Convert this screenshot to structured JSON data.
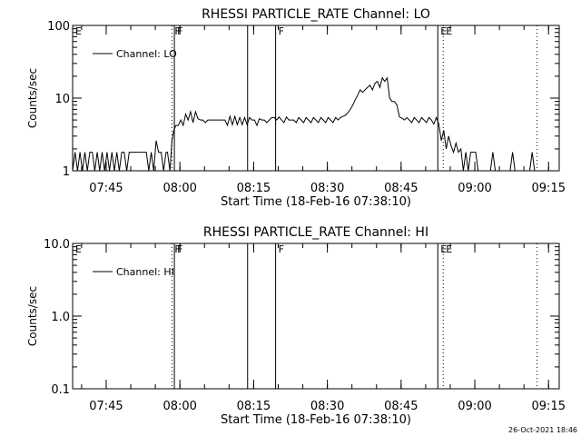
{
  "footer_stamp": "26-Oct-2021 18:46",
  "chart_data": [
    {
      "type": "line",
      "title": "RHESSI PARTICLE_RATE Channel: LO",
      "xlabel": "Start Time (18-Feb-16 07:38:10)",
      "ylabel": "Counts/sec",
      "yscale": "log",
      "ylim": [
        1,
        100
      ],
      "y_ticks": [
        {
          "label": "1",
          "value": 1
        },
        {
          "label": "10",
          "value": 10
        },
        {
          "label": "100",
          "value": 100
        }
      ],
      "x_unit": "minutes after 07:38:10",
      "xlim": [
        0,
        99
      ],
      "x_ticks": [
        {
          "label": "07:45",
          "value": 6.83
        },
        {
          "label": "08:00",
          "value": 21.83
        },
        {
          "label": "08:15",
          "value": 36.83
        },
        {
          "label": "08:30",
          "value": 51.83
        },
        {
          "label": "08:45",
          "value": 66.83
        },
        {
          "label": "09:00",
          "value": 81.83
        },
        {
          "label": "09:15",
          "value": 96.83
        }
      ],
      "markers": [
        {
          "label": "E",
          "x": 0,
          "style": "solid"
        },
        {
          "label": "F",
          "x": 20.2,
          "style": "dotted"
        },
        {
          "label": "F",
          "x": 20.7,
          "style": "solid"
        },
        {
          "label": "",
          "x": 35.6,
          "style": "solid"
        },
        {
          "label": "F",
          "x": 41.3,
          "style": "solid"
        },
        {
          "label": "E",
          "x": 74.3,
          "style": "solid"
        },
        {
          "label": "E",
          "x": 75.4,
          "style": "dotted"
        },
        {
          "label": "",
          "x": 94.5,
          "style": "dotted"
        }
      ],
      "legend": "Channel: LO",
      "series": [
        {
          "name": "Channel: LO",
          "points": [
            [
              0,
              1
            ],
            [
              0.5,
              1.8
            ],
            [
              1,
              1
            ],
            [
              1.5,
              1.8
            ],
            [
              2,
              1
            ],
            [
              2.5,
              1.8
            ],
            [
              3,
              1
            ],
            [
              3.5,
              1.8
            ],
            [
              4,
              1.8
            ],
            [
              4.5,
              1
            ],
            [
              5,
              1.8
            ],
            [
              5.5,
              1
            ],
            [
              6,
              1.8
            ],
            [
              6.5,
              1
            ],
            [
              7,
              1.8
            ],
            [
              7.5,
              1
            ],
            [
              8,
              1.8
            ],
            [
              8.5,
              1
            ],
            [
              9,
              1.8
            ],
            [
              9.5,
              1
            ],
            [
              10,
              1.8
            ],
            [
              10.5,
              1.8
            ],
            [
              11,
              1
            ],
            [
              11.5,
              1.8
            ],
            [
              12,
              1.8
            ],
            [
              13,
              1.8
            ],
            [
              14,
              1.8
            ],
            [
              15,
              1.8
            ],
            [
              15.5,
              1
            ],
            [
              16,
              1.8
            ],
            [
              16.5,
              1
            ],
            [
              17,
              2.6
            ],
            [
              17.5,
              1.8
            ],
            [
              18,
              1.8
            ],
            [
              18.5,
              1
            ],
            [
              19,
              1.8
            ],
            [
              19.3,
              1.8
            ],
            [
              19.8,
              1
            ],
            [
              20.2,
              2.6
            ],
            [
              20.6,
              3.6
            ],
            [
              21,
              4.2
            ],
            [
              21.5,
              4.2
            ],
            [
              22,
              5
            ],
            [
              22.5,
              4.2
            ],
            [
              23,
              6
            ],
            [
              23.5,
              5
            ],
            [
              24,
              6.5
            ],
            [
              24.5,
              4.6
            ],
            [
              25,
              6.5
            ],
            [
              25.5,
              5.2
            ],
            [
              26,
              5
            ],
            [
              26.5,
              5
            ],
            [
              27,
              4.6
            ],
            [
              27.5,
              5
            ],
            [
              28,
              5
            ],
            [
              29,
              5
            ],
            [
              30,
              5
            ],
            [
              31,
              5
            ],
            [
              31.5,
              4.2
            ],
            [
              32,
              5.6
            ],
            [
              32.5,
              4.3
            ],
            [
              33,
              5.6
            ],
            [
              33.5,
              4.3
            ],
            [
              34,
              5.4
            ],
            [
              34.5,
              4.3
            ],
            [
              35,
              5.4
            ],
            [
              35.5,
              4.3
            ],
            [
              36,
              5.4
            ],
            [
              36.5,
              5
            ],
            [
              37,
              5
            ],
            [
              37.5,
              4.2
            ],
            [
              38,
              5.2
            ],
            [
              38.5,
              5
            ],
            [
              39,
              5
            ],
            [
              39.5,
              4.6
            ],
            [
              40,
              5
            ],
            [
              40.5,
              5.4
            ],
            [
              41,
              5.4
            ],
            [
              41.5,
              5
            ],
            [
              42,
              5.5
            ],
            [
              42.5,
              5
            ],
            [
              43,
              4.6
            ],
            [
              43.5,
              5.5
            ],
            [
              44,
              5
            ],
            [
              44.5,
              5
            ],
            [
              45,
              5
            ],
            [
              45.5,
              4.6
            ],
            [
              46,
              5.4
            ],
            [
              46.5,
              5
            ],
            [
              47,
              4.6
            ],
            [
              47.5,
              5.4
            ],
            [
              48,
              5
            ],
            [
              48.5,
              4.6
            ],
            [
              49,
              5.4
            ],
            [
              49.5,
              5
            ],
            [
              50,
              4.6
            ],
            [
              50.5,
              5.4
            ],
            [
              51,
              5
            ],
            [
              51.5,
              4.6
            ],
            [
              52,
              5.4
            ],
            [
              52.5,
              5
            ],
            [
              53,
              4.6
            ],
            [
              53.5,
              5.4
            ],
            [
              54,
              5
            ],
            [
              54.5,
              5.4
            ],
            [
              55,
              5.6
            ],
            [
              55.5,
              5.8
            ],
            [
              56,
              6.3
            ],
            [
              56.5,
              7
            ],
            [
              57,
              8
            ],
            [
              57.5,
              9.5
            ],
            [
              58,
              11
            ],
            [
              58.5,
              13
            ],
            [
              59,
              12
            ],
            [
              59.5,
              13
            ],
            [
              60,
              14
            ],
            [
              60.5,
              15
            ],
            [
              61,
              13
            ],
            [
              61.5,
              16
            ],
            [
              62,
              17
            ],
            [
              62.5,
              14
            ],
            [
              63,
              19
            ],
            [
              63.5,
              17
            ],
            [
              64,
              19
            ],
            [
              64.5,
              10
            ],
            [
              65,
              9
            ],
            [
              65.5,
              9
            ],
            [
              66,
              8
            ],
            [
              66.5,
              5.5
            ],
            [
              67,
              5.3
            ],
            [
              67.5,
              5
            ],
            [
              68,
              5.4
            ],
            [
              68.5,
              5
            ],
            [
              69,
              4.6
            ],
            [
              69.5,
              5.4
            ],
            [
              70,
              5
            ],
            [
              70.5,
              4.6
            ],
            [
              71,
              5.4
            ],
            [
              71.5,
              5
            ],
            [
              72,
              4.6
            ],
            [
              72.5,
              5.4
            ],
            [
              73,
              5
            ],
            [
              73.5,
              4.4
            ],
            [
              74,
              5.4
            ],
            [
              74.5,
              4.4
            ],
            [
              75,
              2.6
            ],
            [
              75.5,
              3.6
            ],
            [
              76,
              2
            ],
            [
              76.5,
              3
            ],
            [
              77,
              2.2
            ],
            [
              77.5,
              1.8
            ],
            [
              78,
              2.4
            ],
            [
              78.5,
              1.8
            ],
            [
              79,
              2
            ],
            [
              79.5,
              1
            ],
            [
              80,
              1.8
            ],
            [
              80.5,
              1
            ],
            [
              81,
              1.8
            ],
            [
              82,
              1.8
            ],
            [
              82.5,
              1
            ],
            [
              83,
              1
            ],
            [
              85,
              1
            ],
            [
              85.5,
              1.8
            ],
            [
              86,
              1
            ],
            [
              89,
              1
            ],
            [
              89.5,
              1.8
            ],
            [
              90,
              1
            ],
            [
              93,
              1
            ],
            [
              93.5,
              1.8
            ],
            [
              94,
              1
            ],
            [
              99,
              1
            ]
          ]
        }
      ]
    },
    {
      "type": "line",
      "title": "RHESSI PARTICLE_RATE Channel: HI",
      "xlabel": "Start Time (18-Feb-16 07:38:10)",
      "ylabel": "Counts/sec",
      "yscale": "log",
      "ylim": [
        0.1,
        10
      ],
      "y_ticks": [
        {
          "label": "0.1",
          "value": 0.1
        },
        {
          "label": "1.0",
          "value": 1
        },
        {
          "label": "10.0",
          "value": 10
        }
      ],
      "x_unit": "minutes after 07:38:10",
      "xlim": [
        0,
        99
      ],
      "x_ticks": [
        {
          "label": "07:45",
          "value": 6.83
        },
        {
          "label": "08:00",
          "value": 21.83
        },
        {
          "label": "08:15",
          "value": 36.83
        },
        {
          "label": "08:30",
          "value": 51.83
        },
        {
          "label": "08:45",
          "value": 66.83
        },
        {
          "label": "09:00",
          "value": 81.83
        },
        {
          "label": "09:15",
          "value": 96.83
        }
      ],
      "markers": [
        {
          "label": "E",
          "x": 0,
          "style": "solid"
        },
        {
          "label": "F",
          "x": 20.2,
          "style": "dotted"
        },
        {
          "label": "F",
          "x": 20.7,
          "style": "solid"
        },
        {
          "label": "",
          "x": 35.6,
          "style": "solid"
        },
        {
          "label": "F",
          "x": 41.3,
          "style": "solid"
        },
        {
          "label": "E",
          "x": 74.3,
          "style": "solid"
        },
        {
          "label": "E",
          "x": 75.4,
          "style": "dotted"
        },
        {
          "label": "",
          "x": 94.5,
          "style": "dotted"
        }
      ],
      "legend": "Channel: HI",
      "series": [
        {
          "name": "Channel: HI",
          "points": []
        }
      ]
    }
  ]
}
